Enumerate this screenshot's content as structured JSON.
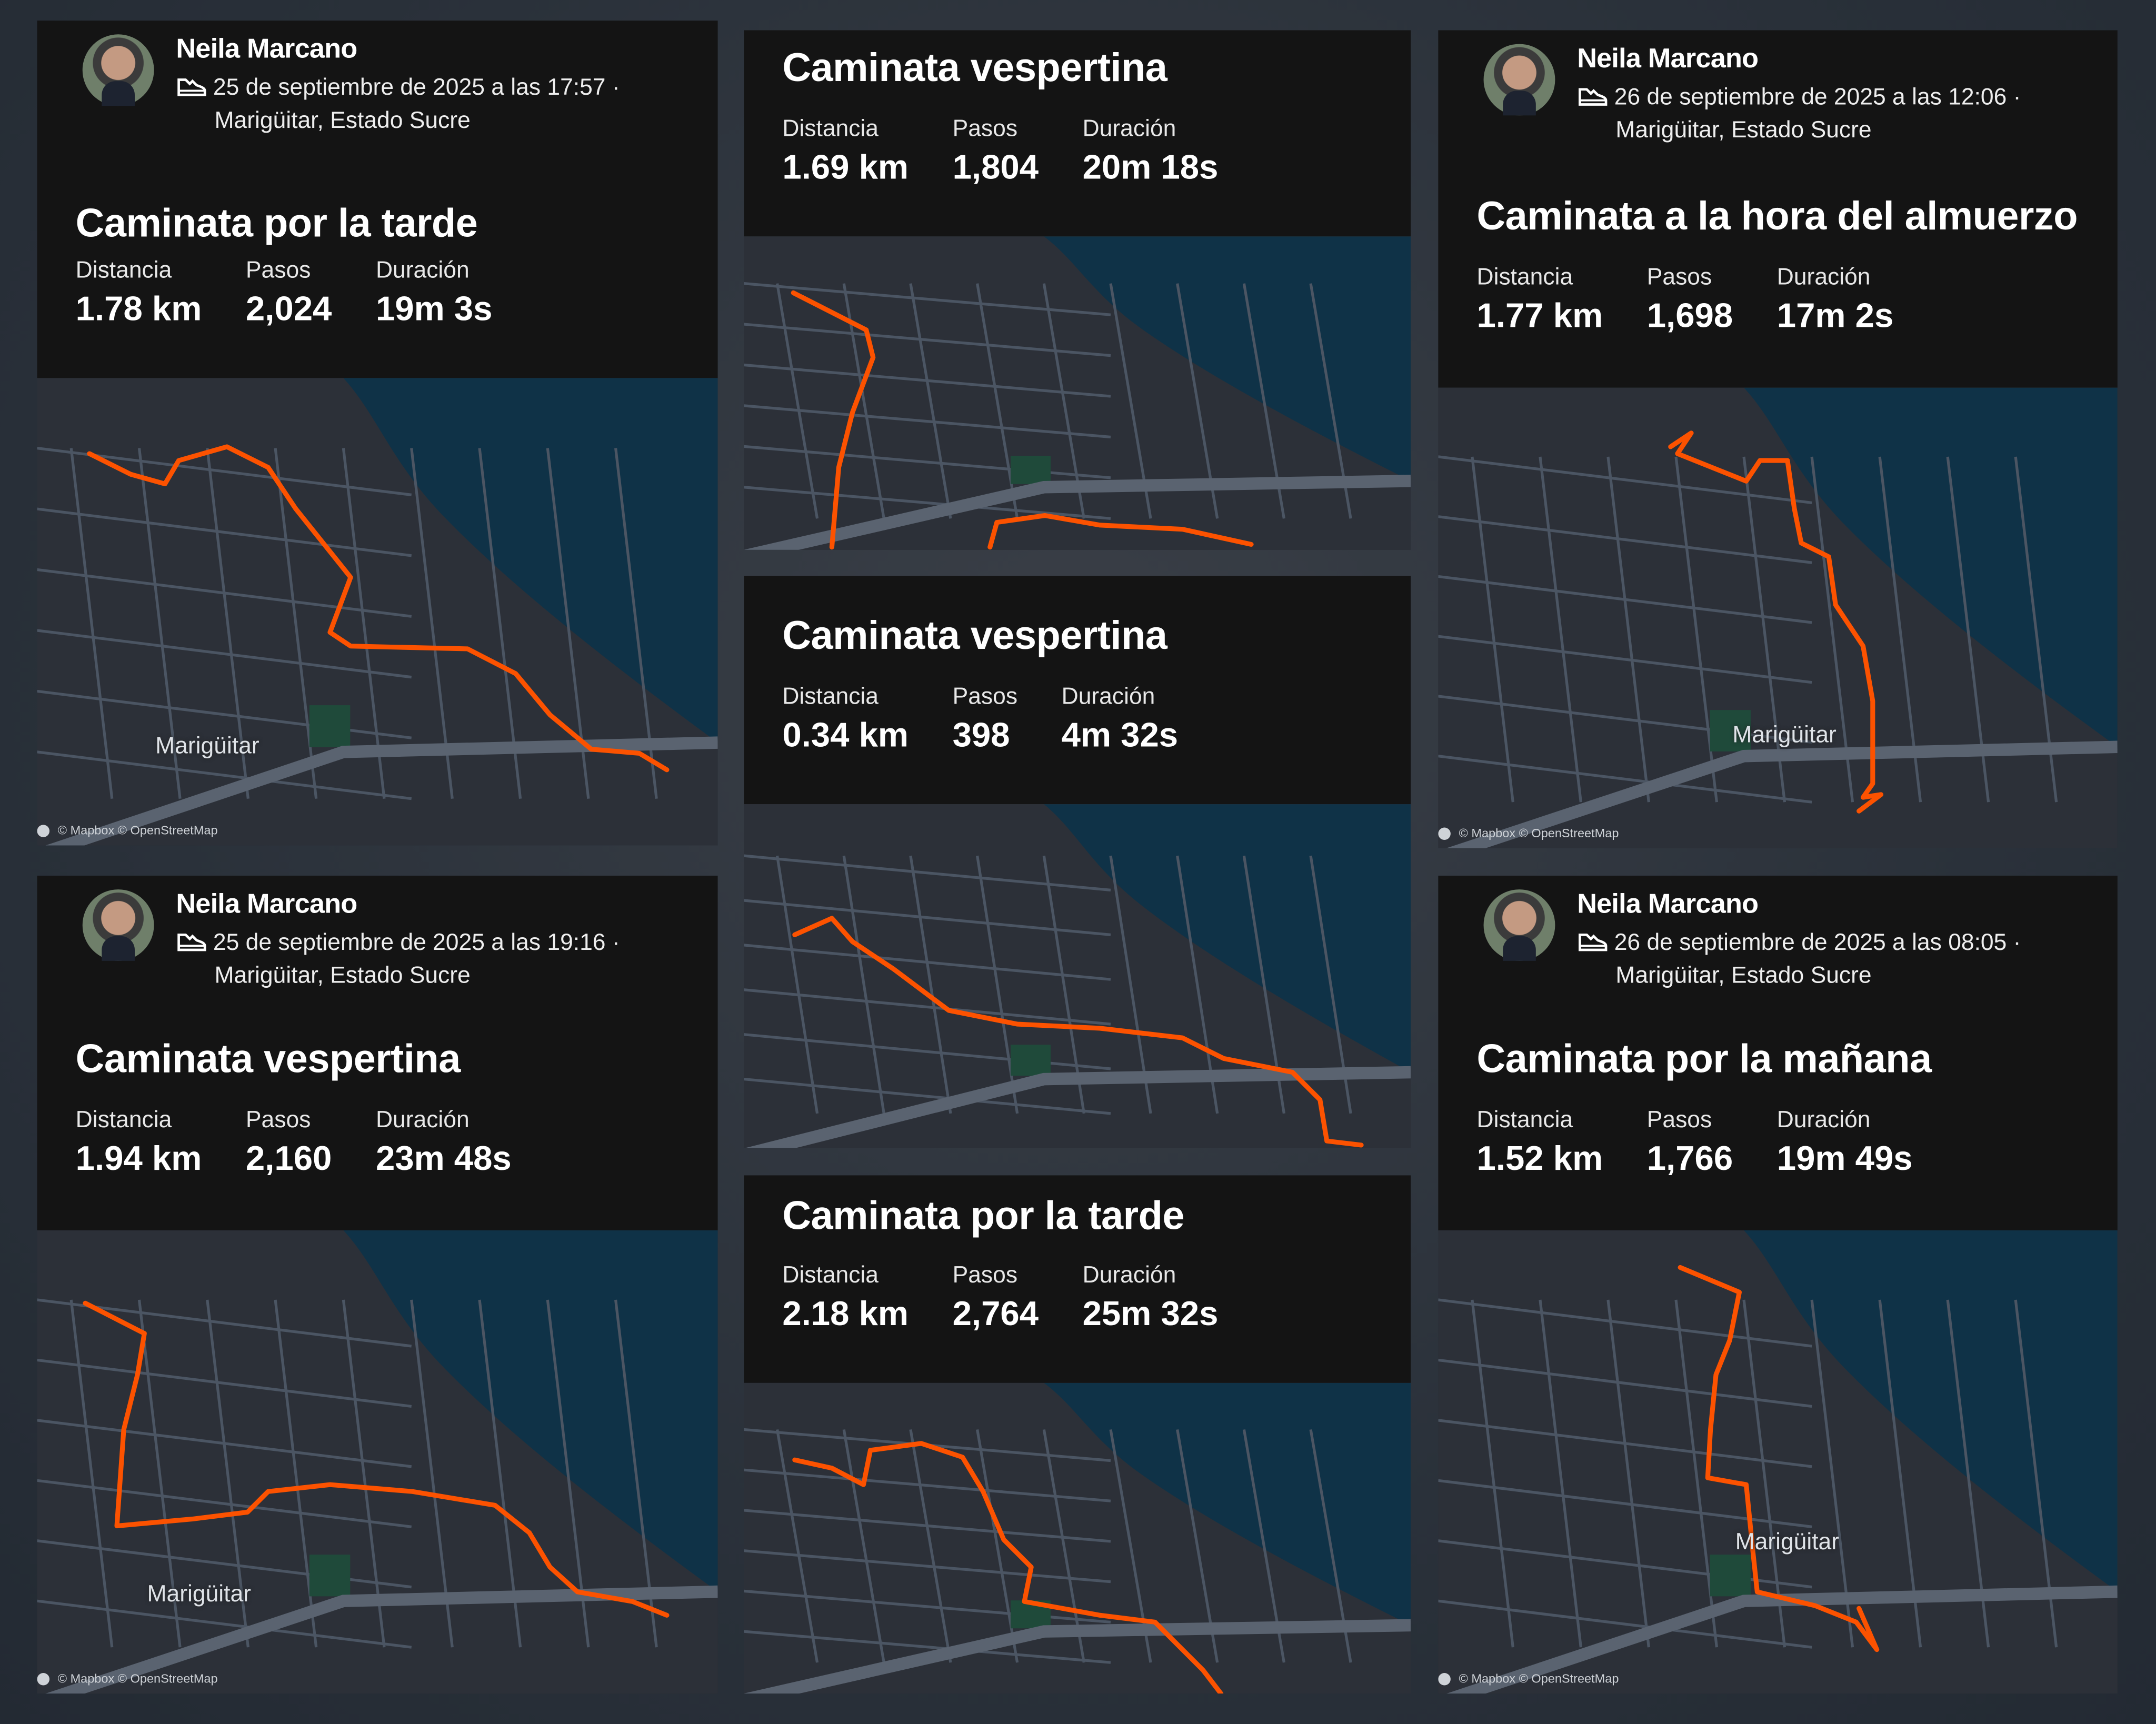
{
  "colors": {
    "route": "#fc5200",
    "land": "#2c3038",
    "sea": "#0f3247",
    "road": "#4b5563",
    "park": "#1f4a3a"
  },
  "labels": {
    "distance": "Distancia",
    "steps": "Pasos",
    "duration": "Duración"
  },
  "map": {
    "attribution": "© Mapbox © OpenStreetMap",
    "town": "Marigüitar"
  },
  "cards": [
    {
      "athlete": {
        "name": "Neila Marcano",
        "date": "25 de septiembre de 2025 a las 17:57 ·",
        "location": "Marigüitar, Estado Sucre"
      },
      "title": "Caminata por la tarde",
      "distance": "1.78 km",
      "steps": "2,024",
      "duration": "19m 3s"
    },
    {
      "athlete": {
        "name": "Neila Marcano",
        "date": "25 de septiembre de 2025 a las 19:16 ·",
        "location": "Marigüitar, Estado Sucre"
      },
      "title": "Caminata vespertina",
      "distance": "1.94 km",
      "steps": "2,160",
      "duration": "23m 48s"
    },
    {
      "title": "Caminata vespertina",
      "distance": "1.69 km",
      "steps": "1,804",
      "duration": "20m 18s"
    },
    {
      "title": "Caminata vespertina",
      "distance": "0.34 km",
      "steps": "398",
      "duration": "4m 32s"
    },
    {
      "title": "Caminata por la tarde",
      "distance": "2.18 km",
      "steps": "2,764",
      "duration": "25m 32s"
    },
    {
      "athlete": {
        "name": "Neila Marcano",
        "date": "26 de septiembre de 2025 a las 12:06 ·",
        "location": "Marigüitar, Estado Sucre"
      },
      "title": "Caminata a la hora del almuerzo",
      "distance": "1.77 km",
      "steps": "1,698",
      "duration": "17m 2s"
    },
    {
      "athlete": {
        "name": "Neila Marcano",
        "date": "26 de septiembre de 2025 a las 08:05 ·",
        "location": "Marigüitar, Estado Sucre"
      },
      "title": "Caminata por la mañana",
      "distance": "1.52 km",
      "steps": "1,766",
      "duration": "19m 49s"
    }
  ]
}
